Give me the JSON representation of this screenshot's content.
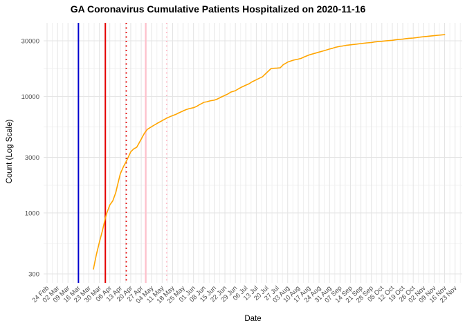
{
  "title": "GA Coronavirus Cumulative Patients Hospitalized on 2020-11-16",
  "chart_data": {
    "type": "line",
    "title": "GA Coronavirus Cumulative Patients Hospitalized on 2020-11-16",
    "xlabel": "Date",
    "ylabel": "Count (Log Scale)",
    "y_scale": "log10",
    "ylim": [
      251,
      43000
    ],
    "y_ticks": [
      300,
      1000,
      3000,
      10000,
      30000
    ],
    "y_minor_ticks": [
      547.7,
      1732.1,
      5477.2,
      17320.5
    ],
    "grid": {
      "major_color": "#e3e3e3",
      "minor_color": "#f0f0f0",
      "background": "#ffffff"
    },
    "tick_label_color": "#4d4d4d",
    "legend": "none",
    "x_ticks": [
      {
        "label": "24 Feb",
        "date": "2020-02-24"
      },
      {
        "label": "02 Mar",
        "date": "2020-03-02"
      },
      {
        "label": "09 Mar",
        "date": "2020-03-09"
      },
      {
        "label": "16 Mar",
        "date": "2020-03-16"
      },
      {
        "label": "23 Mar",
        "date": "2020-03-23"
      },
      {
        "label": "30 Mar",
        "date": "2020-03-30"
      },
      {
        "label": "06 Apr",
        "date": "2020-04-06"
      },
      {
        "label": "13 Apr",
        "date": "2020-04-13"
      },
      {
        "label": "20 Apr",
        "date": "2020-04-20"
      },
      {
        "label": "27 Apr",
        "date": "2020-04-27"
      },
      {
        "label": "04 May",
        "date": "2020-05-04"
      },
      {
        "label": "11 May",
        "date": "2020-05-11"
      },
      {
        "label": "18 May",
        "date": "2020-05-18"
      },
      {
        "label": "25 May",
        "date": "2020-05-25"
      },
      {
        "label": "01 Jun",
        "date": "2020-06-01"
      },
      {
        "label": "08 Jun",
        "date": "2020-06-08"
      },
      {
        "label": "15 Jun",
        "date": "2020-06-15"
      },
      {
        "label": "22 Jun",
        "date": "2020-06-22"
      },
      {
        "label": "29 Jun",
        "date": "2020-06-29"
      },
      {
        "label": "06 Jul",
        "date": "2020-07-06"
      },
      {
        "label": "13 Jul",
        "date": "2020-07-13"
      },
      {
        "label": "20 Jul",
        "date": "2020-07-20"
      },
      {
        "label": "27 Jul",
        "date": "2020-07-27"
      },
      {
        "label": "03 Aug",
        "date": "2020-08-03"
      },
      {
        "label": "10 Aug",
        "date": "2020-08-10"
      },
      {
        "label": "17 Aug",
        "date": "2020-08-17"
      },
      {
        "label": "24 Aug",
        "date": "2020-08-24"
      },
      {
        "label": "31 Aug",
        "date": "2020-08-31"
      },
      {
        "label": "07 Sep",
        "date": "2020-09-07"
      },
      {
        "label": "14 Sep",
        "date": "2020-09-14"
      },
      {
        "label": "21 Sep",
        "date": "2020-09-21"
      },
      {
        "label": "28 Sep",
        "date": "2020-09-28"
      },
      {
        "label": "05 Oct",
        "date": "2020-10-05"
      },
      {
        "label": "12 Oct",
        "date": "2020-10-12"
      },
      {
        "label": "19 Oct",
        "date": "2020-10-19"
      },
      {
        "label": "26 Oct",
        "date": "2020-10-26"
      },
      {
        "label": "02 Nov",
        "date": "2020-11-02"
      },
      {
        "label": "09 Nov",
        "date": "2020-11-09"
      },
      {
        "label": "16 Nov",
        "date": "2020-11-16"
      },
      {
        "label": "23 Nov",
        "date": "2020-11-23"
      }
    ],
    "vlines": [
      {
        "name": "event-line-blue",
        "date": "2020-03-16",
        "color": "#0000cd",
        "style": "solid",
        "width": 2
      },
      {
        "name": "event-line-red",
        "date": "2020-04-03",
        "color": "#e60000",
        "style": "solid",
        "width": 2
      },
      {
        "name": "event-line-red-dotted",
        "date": "2020-04-17",
        "color": "#e60000",
        "style": "dotted",
        "width": 1.8
      },
      {
        "name": "event-line-pink",
        "date": "2020-04-30",
        "color": "#ffc0cb",
        "style": "solid",
        "width": 2.2
      },
      {
        "name": "event-line-pink-dotted",
        "date": "2020-05-14",
        "color": "#ffc0cb",
        "style": "dotted",
        "width": 1.8
      }
    ],
    "series": [
      {
        "name": "cumulative_patients_hospitalized",
        "color": "#FFA500",
        "width": 1.6,
        "points": [
          [
            "2020-03-26",
            330
          ],
          [
            "2020-03-28",
            440
          ],
          [
            "2020-03-30",
            560
          ],
          [
            "2020-04-01",
            700
          ],
          [
            "2020-04-03",
            900
          ],
          [
            "2020-04-04",
            1000
          ],
          [
            "2020-04-06",
            1170
          ],
          [
            "2020-04-08",
            1270
          ],
          [
            "2020-04-10",
            1500
          ],
          [
            "2020-04-11",
            1700
          ],
          [
            "2020-04-13",
            2160
          ],
          [
            "2020-04-15",
            2480
          ],
          [
            "2020-04-17",
            2770
          ],
          [
            "2020-04-20",
            3350
          ],
          [
            "2020-04-22",
            3550
          ],
          [
            "2020-04-24",
            3660
          ],
          [
            "2020-04-27",
            4300
          ],
          [
            "2020-04-29",
            4800
          ],
          [
            "2020-05-01",
            5200
          ],
          [
            "2020-05-04",
            5500
          ],
          [
            "2020-05-06",
            5700
          ],
          [
            "2020-05-08",
            5900
          ],
          [
            "2020-05-11",
            6200
          ],
          [
            "2020-05-13",
            6400
          ],
          [
            "2020-05-15",
            6600
          ],
          [
            "2020-05-18",
            6850
          ],
          [
            "2020-05-20",
            7000
          ],
          [
            "2020-05-22",
            7200
          ],
          [
            "2020-05-25",
            7500
          ],
          [
            "2020-05-27",
            7700
          ],
          [
            "2020-05-29",
            7850
          ],
          [
            "2020-06-01",
            8000
          ],
          [
            "2020-06-03",
            8200
          ],
          [
            "2020-06-05",
            8500
          ],
          [
            "2020-06-08",
            8900
          ],
          [
            "2020-06-10",
            9000
          ],
          [
            "2020-06-12",
            9150
          ],
          [
            "2020-06-15",
            9300
          ],
          [
            "2020-06-17",
            9500
          ],
          [
            "2020-06-19",
            9800
          ],
          [
            "2020-06-22",
            10200
          ],
          [
            "2020-06-24",
            10500
          ],
          [
            "2020-06-26",
            10900
          ],
          [
            "2020-06-29",
            11200
          ],
          [
            "2020-07-01",
            11600
          ],
          [
            "2020-07-03",
            12000
          ],
          [
            "2020-07-06",
            12500
          ],
          [
            "2020-07-08",
            12800
          ],
          [
            "2020-07-10",
            13300
          ],
          [
            "2020-07-13",
            13900
          ],
          [
            "2020-07-15",
            14300
          ],
          [
            "2020-07-17",
            14700
          ],
          [
            "2020-07-20",
            16000
          ],
          [
            "2020-07-22",
            16900
          ],
          [
            "2020-07-23",
            17400
          ],
          [
            "2020-07-27",
            17500
          ],
          [
            "2020-07-29",
            17600
          ],
          [
            "2020-07-31",
            18700
          ],
          [
            "2020-08-03",
            19700
          ],
          [
            "2020-08-05",
            20100
          ],
          [
            "2020-08-07",
            20500
          ],
          [
            "2020-08-10",
            20900
          ],
          [
            "2020-08-12",
            21200
          ],
          [
            "2020-08-14",
            21800
          ],
          [
            "2020-08-17",
            22600
          ],
          [
            "2020-08-19",
            23000
          ],
          [
            "2020-08-21",
            23400
          ],
          [
            "2020-08-24",
            24000
          ],
          [
            "2020-08-26",
            24400
          ],
          [
            "2020-08-28",
            24800
          ],
          [
            "2020-08-31",
            25500
          ],
          [
            "2020-09-02",
            25900
          ],
          [
            "2020-09-04",
            26400
          ],
          [
            "2020-09-07",
            26900
          ],
          [
            "2020-09-09",
            27100
          ],
          [
            "2020-09-11",
            27400
          ],
          [
            "2020-09-14",
            27700
          ],
          [
            "2020-09-16",
            27900
          ],
          [
            "2020-09-18",
            28100
          ],
          [
            "2020-09-21",
            28400
          ],
          [
            "2020-09-23",
            28600
          ],
          [
            "2020-09-25",
            28800
          ],
          [
            "2020-09-28",
            29000
          ],
          [
            "2020-09-30",
            29300
          ],
          [
            "2020-10-02",
            29500
          ],
          [
            "2020-10-05",
            29700
          ],
          [
            "2020-10-07",
            29900
          ],
          [
            "2020-10-09",
            30100
          ],
          [
            "2020-10-12",
            30300
          ],
          [
            "2020-10-14",
            30600
          ],
          [
            "2020-10-16",
            30800
          ],
          [
            "2020-10-19",
            31000
          ],
          [
            "2020-10-21",
            31300
          ],
          [
            "2020-10-23",
            31500
          ],
          [
            "2020-10-26",
            31700
          ],
          [
            "2020-10-28",
            31900
          ],
          [
            "2020-10-30",
            32200
          ],
          [
            "2020-11-02",
            32500
          ],
          [
            "2020-11-04",
            32700
          ],
          [
            "2020-11-06",
            32900
          ],
          [
            "2020-11-09",
            33200
          ],
          [
            "2020-11-11",
            33400
          ],
          [
            "2020-11-13",
            33600
          ],
          [
            "2020-11-16",
            33900
          ]
        ]
      }
    ]
  }
}
